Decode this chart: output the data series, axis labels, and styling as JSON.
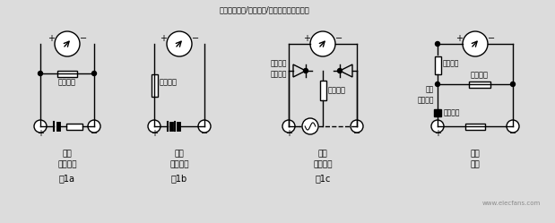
{
  "bg_color": "#e8e8e8",
  "line_color": "#000000",
  "title_top": "测量直流电阻/交流电源/直流电源功能原理图",
  "fig1a_label": "图1a",
  "fig1b_label": "图1b",
  "fig1c_label": "图1c",
  "fig1a_bottom": "被测\n直流电阻",
  "fig1b_bottom": "被测\n直流电源",
  "fig1c_bottom": "被测\n交流电源",
  "fig1d_bottom": "被测\n电阻",
  "label_fenshun": "分流电阻",
  "label_jiangya": "降压电阻",
  "label_bingchuan": "并串式半\n波整流器",
  "label_beizeng": "倍增电阻",
  "label_tiaolin": "调零电阻",
  "label_fenshun2": "分流电阻",
  "label_biaonei": "表内\n等效电阻",
  "label_biaochi": "表内电池",
  "watermark": "www.elecfans.com"
}
